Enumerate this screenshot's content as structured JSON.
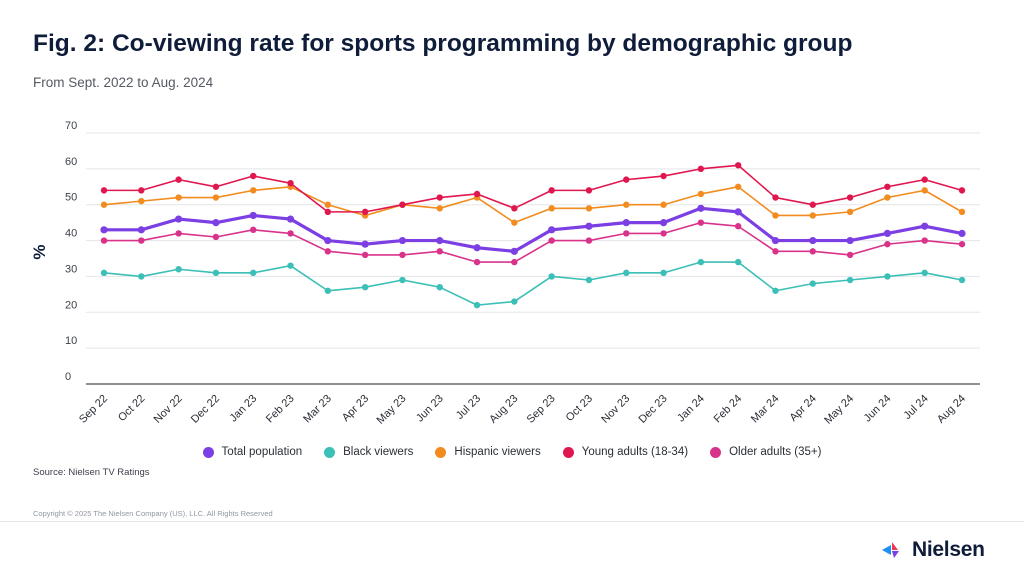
{
  "title": "Fig. 2: Co-viewing rate for sports programming by demographic group",
  "subtitle": "From Sept. 2022 to Aug. 2024",
  "source": "Source: Nielsen TV Ratings",
  "copyright": "Copyright © 2025 The Nielsen Company (US), LLC. All Rights Reserved",
  "brand": {
    "name": "Nielsen",
    "icon": "nielsen-logo-icon",
    "colors": [
      "#1f8ef1",
      "#f0355b",
      "#7b3fe4"
    ]
  },
  "chart_data": {
    "type": "line",
    "ylabel": "%",
    "xlabel": "",
    "ylim": [
      0,
      70
    ],
    "yticks": [
      0,
      10,
      20,
      30,
      40,
      50,
      60,
      70
    ],
    "grid": true,
    "legend_position": "bottom",
    "categories": [
      "Sep 22",
      "Oct 22",
      "Nov 22",
      "Dec 22",
      "Jan 23",
      "Feb 23",
      "Mar 23",
      "Apr 23",
      "May 23",
      "Jun 23",
      "Jul 23",
      "Aug 23",
      "Sep 23",
      "Oct 23",
      "Nov 23",
      "Dec 23",
      "Jan 24",
      "Feb 24",
      "Mar 24",
      "Apr 24",
      "May 24",
      "Jun 24",
      "Jul 24",
      "Aug 24"
    ],
    "series": [
      {
        "name": "Total population",
        "color": "#7b3fe4",
        "width": 3.2,
        "values": [
          43,
          43,
          46,
          45,
          47,
          46,
          40,
          39,
          40,
          40,
          38,
          37,
          43,
          44,
          45,
          45,
          49,
          48,
          40,
          40,
          40,
          42,
          44,
          42
        ]
      },
      {
        "name": "Black viewers",
        "color": "#3bbfb6",
        "width": 1.6,
        "values": [
          31,
          30,
          32,
          31,
          31,
          33,
          26,
          27,
          29,
          27,
          22,
          23,
          30,
          29,
          31,
          31,
          34,
          34,
          26,
          28,
          29,
          30,
          31,
          29
        ]
      },
      {
        "name": "Hispanic viewers",
        "color": "#f28c1e",
        "width": 1.6,
        "values": [
          50,
          51,
          52,
          52,
          54,
          55,
          50,
          47,
          50,
          49,
          52,
          45,
          49,
          49,
          50,
          50,
          53,
          55,
          47,
          47,
          48,
          52,
          54,
          48
        ]
      },
      {
        "name": "Young adults (18-34)",
        "color": "#e0174f",
        "width": 1.6,
        "values": [
          54,
          54,
          57,
          55,
          58,
          56,
          48,
          48,
          50,
          52,
          53,
          49,
          54,
          54,
          57,
          58,
          60,
          61,
          52,
          50,
          52,
          55,
          57,
          54
        ]
      },
      {
        "name": "Older adults (35+)",
        "color": "#d9328a",
        "width": 1.6,
        "values": [
          40,
          40,
          42,
          41,
          43,
          42,
          37,
          36,
          36,
          37,
          34,
          34,
          40,
          40,
          42,
          42,
          45,
          44,
          37,
          37,
          36,
          39,
          40,
          39
        ]
      }
    ]
  }
}
